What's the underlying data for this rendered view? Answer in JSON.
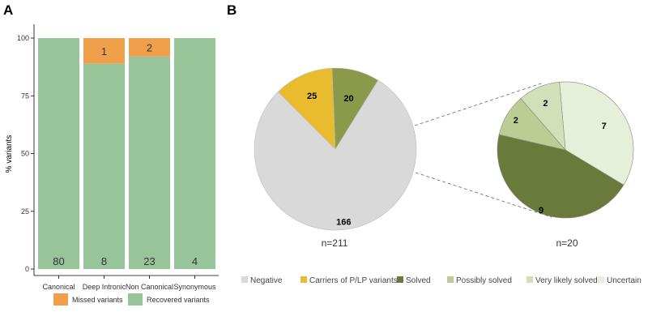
{
  "panels": {
    "a": "A",
    "b": "B"
  },
  "chart_data": [
    {
      "type": "bar",
      "stacked": true,
      "ylabel": "% variants",
      "ylim": [
        0,
        100
      ],
      "yticks": [
        "0",
        "25",
        "50",
        "75",
        "100"
      ],
      "categories": [
        "Canonical",
        "Deep Intronic",
        "Non Canonical",
        "Synonymous"
      ],
      "series": [
        {
          "name": "Recovered variants",
          "color": "#98c49a",
          "percent": [
            100,
            88.9,
            92,
            100
          ],
          "counts": [
            "80",
            "8",
            "23",
            "4"
          ]
        },
        {
          "name": "Missed variants",
          "color": "#f0a04b",
          "percent": [
            0,
            11.1,
            8,
            0
          ],
          "counts": [
            "",
            "1",
            "2",
            ""
          ]
        }
      ],
      "legend": [
        "Missed variants",
        "Recovered variants"
      ]
    },
    {
      "type": "pie",
      "total_label": "n=211",
      "slices": [
        {
          "name": "Negative",
          "value": 166,
          "label": "166",
          "color": "#d9d9d9"
        },
        {
          "name": "Carriers of P/LP variants",
          "value": 25,
          "label": "25",
          "color": "#e8bc2e"
        },
        {
          "name": "Solved",
          "value": 20,
          "label": "20",
          "color": "#8a9a4a"
        }
      ]
    },
    {
      "type": "pie",
      "total_label": "n=20",
      "slices": [
        {
          "name": "Uncertain",
          "value": 7,
          "label": "7",
          "color": "#e6efd8"
        },
        {
          "name": "Solved",
          "value": 9,
          "label": "9",
          "color": "#6a7a3a"
        },
        {
          "name": "Possibly solved",
          "value": 2,
          "label": "2",
          "color": "#bccd94"
        },
        {
          "name": "Very likely solved",
          "value": 2,
          "label": "2",
          "color": "#d3dfb8"
        }
      ]
    }
  ],
  "legend_b": [
    {
      "label": "Negative",
      "color": "#d9d9d9"
    },
    {
      "label": "Carriers of P/LP variants",
      "color": "#e8bc2e"
    },
    {
      "label": "Solved",
      "color": "#6a7a3a"
    },
    {
      "label": "Possibly solved",
      "color": "#bccd94"
    },
    {
      "label": "Very likely solved",
      "color": "#d3dfb8"
    },
    {
      "label": "Uncertain",
      "color": "#e6efd8"
    }
  ]
}
